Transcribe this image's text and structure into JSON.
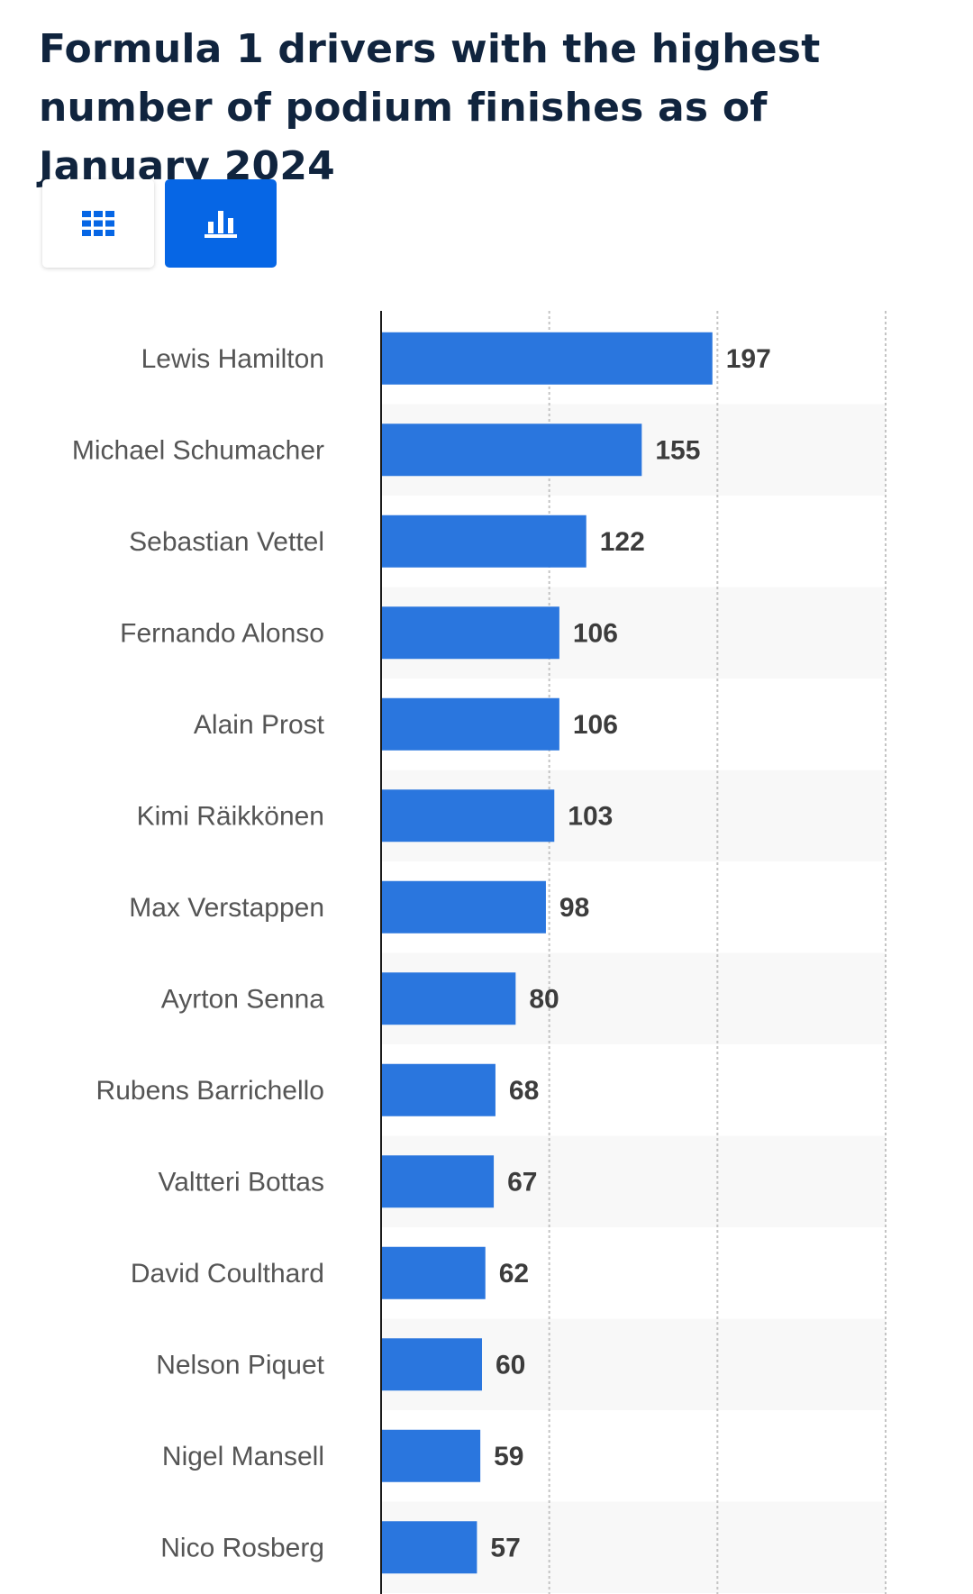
{
  "header": {
    "title": "Formula 1 drivers with the highest number of podium finishes as of January 2024"
  },
  "view_toggle": {
    "table_icon": "grid-table-icon",
    "chart_icon": "bar-chart-icon",
    "active": "chart"
  },
  "colors": {
    "bar": "#2a76de",
    "title": "#10243e",
    "active_toggle": "#0666e5",
    "stripe": "#f8f8f8"
  },
  "chart_data": {
    "type": "bar",
    "orientation": "horizontal",
    "categories": [
      "Lewis Hamilton",
      "Michael Schumacher",
      "Sebastian Vettel",
      "Fernando Alonso",
      "Alain Prost",
      "Kimi Räikkönen",
      "Max Verstappen",
      "Ayrton Senna",
      "Rubens Barrichello",
      "Valtteri Bottas",
      "David Coulthard",
      "Nelson Piquet",
      "Nigel Mansell",
      "Nico Rosberg"
    ],
    "values": [
      197,
      155,
      122,
      106,
      106,
      103,
      98,
      80,
      68,
      67,
      62,
      60,
      59,
      57
    ],
    "title": "Formula 1 drivers with the highest number of podium finishes as of January 2024",
    "xlabel": "",
    "ylabel": "",
    "xlim": [
      0,
      300
    ],
    "gridlines": [
      100,
      200,
      300
    ],
    "grid": true,
    "legend": "none"
  }
}
